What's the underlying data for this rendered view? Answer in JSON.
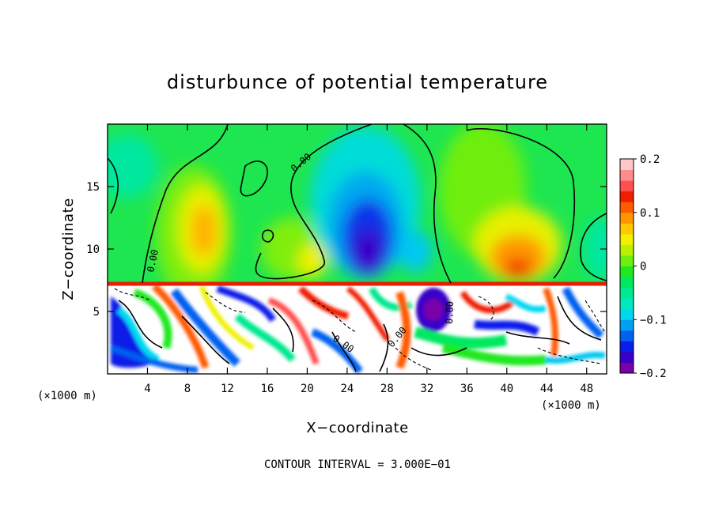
{
  "chart_data": {
    "type": "heatmap",
    "title": "disturbunce of potential temperature",
    "xlabel": "X−coordinate",
    "ylabel": "Z−coordinate",
    "x_unit_left": "(×1000 m)",
    "x_unit_right": "(×1000 m)",
    "xlim": [
      0,
      50
    ],
    "ylim": [
      0,
      20
    ],
    "x_ticks": [
      4,
      8,
      12,
      16,
      20,
      24,
      28,
      32,
      36,
      40,
      44,
      48
    ],
    "x_tick_labels": [
      "4",
      "8",
      "12",
      "16",
      "20",
      "24",
      "28",
      "32",
      "36",
      "40",
      "44",
      "48"
    ],
    "y_ticks": [
      5,
      10,
      15
    ],
    "y_tick_labels": [
      "5",
      "10",
      "15"
    ],
    "contour_label": "0.00",
    "footer": "CONTOUR INTERVAL = 3.000E−01",
    "colorbar": {
      "min": -0.2,
      "max": 0.2,
      "ticks": [
        0.2,
        0.1,
        0,
        -0.1,
        -0.2
      ],
      "tick_labels": [
        "0.2",
        "0.1",
        "0",
        "−0.1",
        "−0.2"
      ],
      "colors": [
        "#7a00a8",
        "#3a00c8",
        "#0a1ee8",
        "#0060f0",
        "#00a0f0",
        "#00d8f0",
        "#00e8c0",
        "#00e890",
        "#00e860",
        "#20e820",
        "#70ee10",
        "#b8f000",
        "#f0f000",
        "#ffc800",
        "#ff9600",
        "#ff5a00",
        "#f01e00",
        "#ff5050",
        "#ff8c8c",
        "#ffc8c8"
      ]
    },
    "features": [
      {
        "name": "cold-core-24-28",
        "x": 26,
        "z": 10.5,
        "rx": 2.6,
        "rz": 3.6,
        "value": -0.2
      },
      {
        "name": "cold-envelope-22-31",
        "x": 26.5,
        "z": 13,
        "rx": 4.5,
        "rz": 6,
        "value": -0.08
      },
      {
        "name": "warm-plume-8-12",
        "x": 9.5,
        "z": 12,
        "rx": 2.2,
        "rz": 4,
        "value": 0.1
      },
      {
        "name": "warm-plume-39-44",
        "x": 41,
        "z": 10,
        "rx": 3.2,
        "rz": 3.2,
        "value": 0.12
      },
      {
        "name": "cold-cell-32",
        "x": 32,
        "z": 5.5,
        "rx": 1.2,
        "rz": 1.4,
        "value": -0.2
      }
    ]
  }
}
